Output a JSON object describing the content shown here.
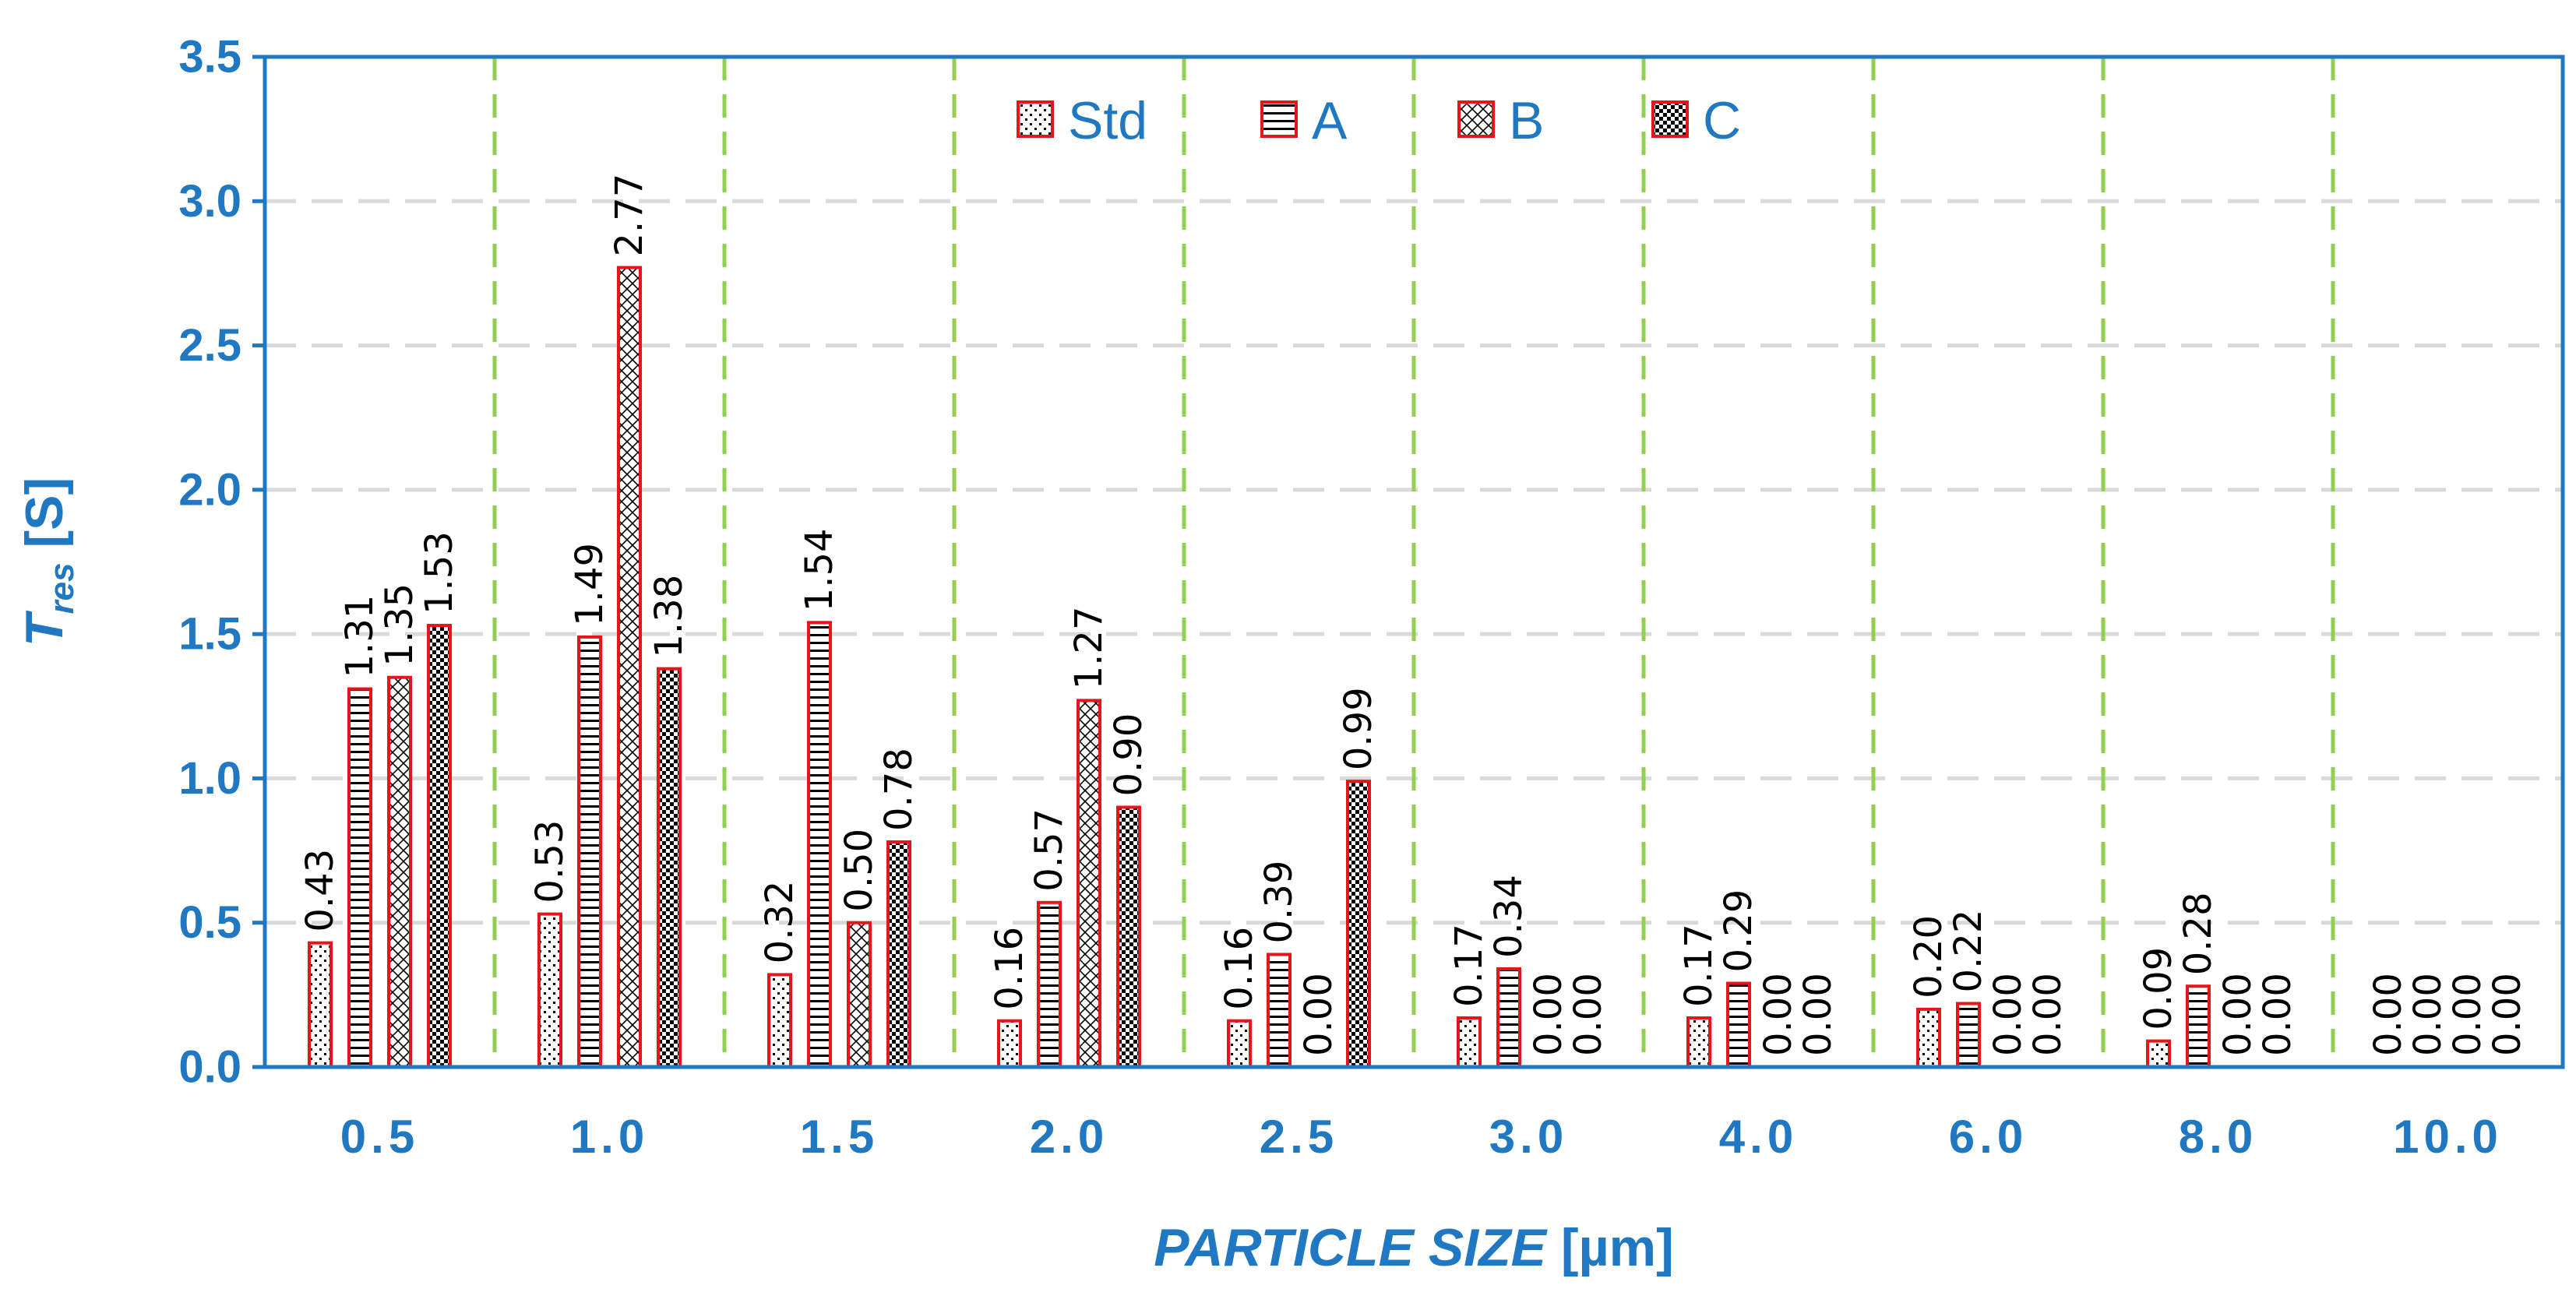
{
  "chart_data": {
    "type": "bar",
    "title": "",
    "xlabel_italic": "PARTICLE SIZE",
    "xlabel_unit": "[µm]",
    "ylabel_main": "T",
    "ylabel_sub": "res",
    "ylabel_unit": "[S]",
    "ylim": [
      0,
      3.5
    ],
    "ytick_values": [
      0.0,
      0.5,
      1.0,
      1.5,
      2.0,
      2.5,
      3.0,
      3.5
    ],
    "ytick_labels": [
      "0.0",
      "0.5",
      "1.0",
      "1.5",
      "2.0",
      "2.5",
      "3.0",
      "3.5"
    ],
    "grid": true,
    "legend_position": "top",
    "categories": [
      "0.5",
      "1.0",
      "1.5",
      "2.0",
      "2.5",
      "3.0",
      "4.0",
      "6.0",
      "8.0",
      "10.0"
    ],
    "series": [
      {
        "name": "Std",
        "pattern": "dots",
        "values": [
          0.43,
          0.53,
          0.32,
          0.16,
          0.16,
          0.17,
          0.17,
          0.2,
          0.09,
          0.0
        ],
        "labels": [
          "0.43",
          "0.53",
          "0.32",
          "0.16",
          "0.16",
          "0.17",
          "0.17",
          "0.20",
          "0.09",
          "0.00"
        ]
      },
      {
        "name": "A",
        "pattern": "hlines",
        "values": [
          1.31,
          1.49,
          1.54,
          0.57,
          0.39,
          0.34,
          0.29,
          0.22,
          0.28,
          0.0
        ],
        "labels": [
          "1.31",
          "1.49",
          "1.54",
          "0.57",
          "0.39",
          "0.34",
          "0.29",
          "0.22",
          "0.28",
          "0.00"
        ]
      },
      {
        "name": "B",
        "pattern": "zigzag",
        "values": [
          1.35,
          2.77,
          0.5,
          1.27,
          0.0,
          0.0,
          0.0,
          0.0,
          0.0,
          0.0
        ],
        "labels": [
          "1.35",
          "2.77",
          "0.50",
          "1.27",
          "0.00",
          "0.00",
          "0.00",
          "0.00",
          "0.00",
          "0.00"
        ]
      },
      {
        "name": "C",
        "pattern": "checker",
        "values": [
          1.53,
          1.38,
          0.78,
          0.9,
          0.99,
          0.0,
          0.0,
          0.0,
          0.0,
          0.0
        ],
        "labels": [
          "1.53",
          "1.38",
          "0.78",
          "0.90",
          "0.99",
          "0.00",
          "0.00",
          "0.00",
          "0.00",
          "0.00"
        ]
      }
    ]
  },
  "colors": {
    "axis": "#1f78c1",
    "bar_border": "#e8141b",
    "pattern_ink": "#000000",
    "hgrid": "#d9d9d9",
    "vgrid": "#92d050",
    "value_label": "#000000"
  }
}
